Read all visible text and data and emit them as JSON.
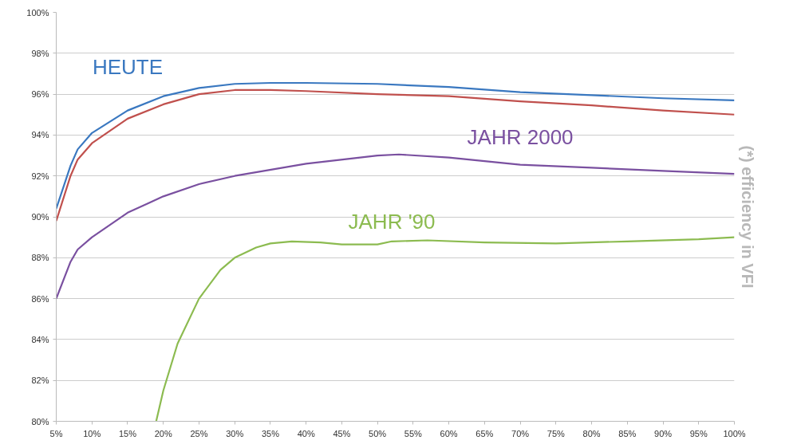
{
  "chart_data": {
    "type": "line",
    "xlim": [
      5,
      100
    ],
    "ylim": [
      80,
      100
    ],
    "xticks": [
      {
        "value": 5,
        "label": "5%"
      },
      {
        "value": 10,
        "label": "10%"
      },
      {
        "value": 15,
        "label": "15%"
      },
      {
        "value": 20,
        "label": "20%"
      },
      {
        "value": 25,
        "label": "25%"
      },
      {
        "value": 30,
        "label": "30%"
      },
      {
        "value": 35,
        "label": "35%"
      },
      {
        "value": 40,
        "label": "40%"
      },
      {
        "value": 45,
        "label": "45%"
      },
      {
        "value": 50,
        "label": "50%"
      },
      {
        "value": 55,
        "label": "55%"
      },
      {
        "value": 60,
        "label": "60%"
      },
      {
        "value": 65,
        "label": "65%"
      },
      {
        "value": 70,
        "label": "70%"
      },
      {
        "value": 75,
        "label": "75%"
      },
      {
        "value": 80,
        "label": "80%"
      },
      {
        "value": 85,
        "label": "85%"
      },
      {
        "value": 90,
        "label": "90%"
      },
      {
        "value": 95,
        "label": "95%"
      },
      {
        "value": 100,
        "label": "100%"
      }
    ],
    "yticks": [
      {
        "value": 80,
        "label": "80%"
      },
      {
        "value": 82,
        "label": "82%"
      },
      {
        "value": 84,
        "label": "84%"
      },
      {
        "value": 86,
        "label": "86%"
      },
      {
        "value": 88,
        "label": "88%"
      },
      {
        "value": 90,
        "label": "90%"
      },
      {
        "value": 92,
        "label": "92%"
      },
      {
        "value": 94,
        "label": "94%"
      },
      {
        "value": 96,
        "label": "96%"
      },
      {
        "value": 98,
        "label": "98%"
      },
      {
        "value": 100,
        "label": "100%"
      }
    ],
    "grid": "y",
    "legend": false,
    "marker": "none",
    "line_style": "solid",
    "series": [
      {
        "name": "HEUTE",
        "color": "#3a78c0",
        "x": [
          5,
          7,
          8,
          10,
          15,
          20,
          25,
          30,
          35,
          40,
          50,
          60,
          70,
          80,
          90,
          100
        ],
        "values": [
          90.4,
          92.5,
          93.3,
          94.1,
          95.2,
          95.9,
          96.3,
          96.5,
          96.55,
          96.55,
          96.5,
          96.35,
          96.1,
          95.95,
          95.8,
          95.7
        ]
      },
      {
        "color": "#c0504d",
        "x": [
          5,
          7,
          8,
          10,
          15,
          20,
          25,
          30,
          35,
          40,
          50,
          60,
          70,
          80,
          90,
          100
        ],
        "values": [
          89.8,
          92.0,
          92.8,
          93.6,
          94.8,
          95.5,
          96.0,
          96.2,
          96.2,
          96.15,
          96.0,
          95.9,
          95.65,
          95.45,
          95.2,
          95.0
        ]
      },
      {
        "name": "JAHR 2000",
        "color": "#7a50a0",
        "x": [
          5,
          7,
          8,
          10,
          15,
          20,
          25,
          30,
          40,
          50,
          53,
          60,
          70,
          80,
          90,
          100
        ],
        "values": [
          86.0,
          87.8,
          88.4,
          89.0,
          90.2,
          91.0,
          91.6,
          92.0,
          92.6,
          93.0,
          93.05,
          92.9,
          92.55,
          92.4,
          92.25,
          92.1
        ]
      },
      {
        "name": "JAHR '90",
        "color": "#8cbb50",
        "x": [
          19,
          20,
          22,
          25,
          28,
          30,
          33,
          35,
          38,
          42,
          45,
          50,
          52,
          57,
          65,
          75,
          85,
          95,
          100
        ],
        "values": [
          80.0,
          81.5,
          83.8,
          86.0,
          87.4,
          88.0,
          88.5,
          88.7,
          88.8,
          88.75,
          88.65,
          88.65,
          88.8,
          88.85,
          88.75,
          88.7,
          88.8,
          88.9,
          89.0
        ]
      }
    ],
    "annotations": [
      "(*) efficiency in VFI"
    ]
  }
}
